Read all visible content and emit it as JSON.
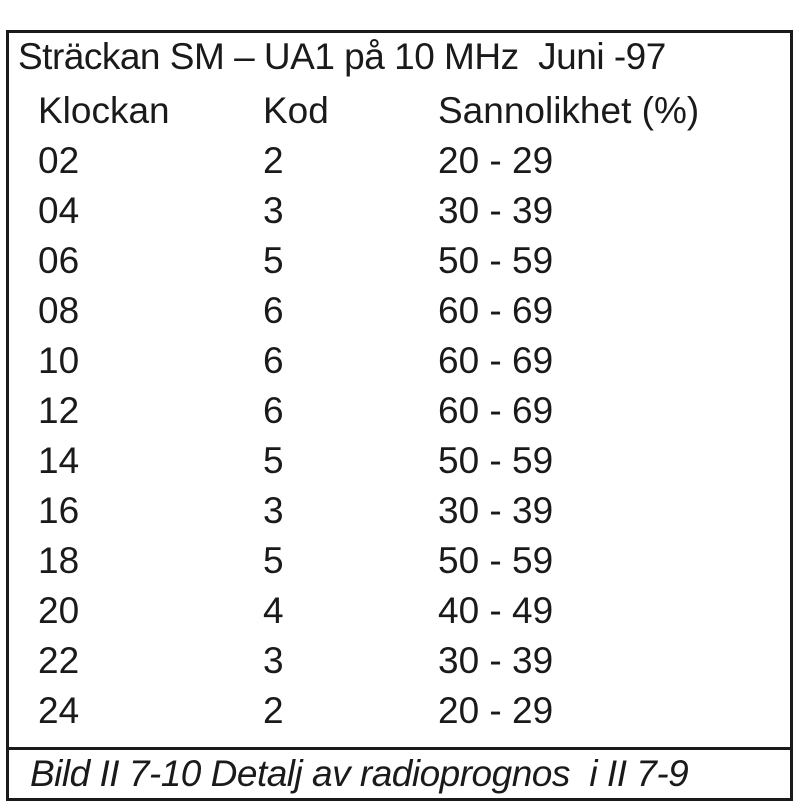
{
  "title": "Sträckan SM – UA1 på 10 MHz  Juni -97",
  "headers": [
    "Klockan",
    "Kod",
    "Sannolikhet (%)"
  ],
  "rows": [
    [
      "02",
      "2",
      "20 - 29"
    ],
    [
      "04",
      "3",
      "30 - 39"
    ],
    [
      "06",
      "5",
      "50 - 59"
    ],
    [
      "08",
      "6",
      "60 - 69"
    ],
    [
      "10",
      "6",
      "60 - 69"
    ],
    [
      "12",
      "6",
      "60 - 69"
    ],
    [
      "14",
      "5",
      "50 - 59"
    ],
    [
      "16",
      "3",
      "30 - 39"
    ],
    [
      "18",
      "5",
      "50 - 59"
    ],
    [
      "20",
      "4",
      "40 - 49"
    ],
    [
      "22",
      "3",
      "30 - 39"
    ],
    [
      "24",
      "2",
      "20 - 29"
    ]
  ],
  "caption": "Bild II 7-10 Detalj av radioprognos  i II 7-9"
}
